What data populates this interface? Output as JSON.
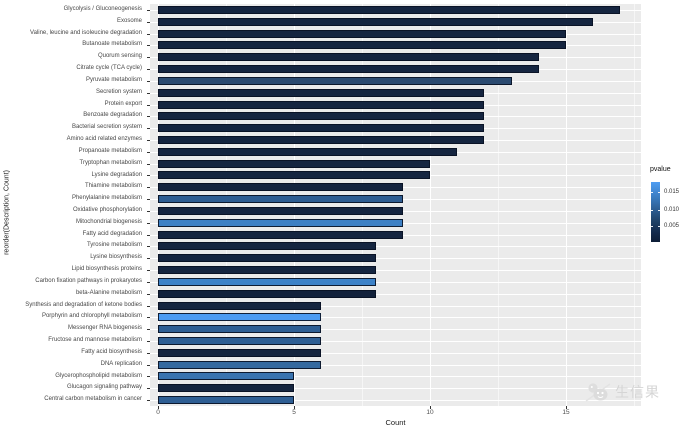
{
  "figure": {
    "x_axis_title": "Count",
    "y_axis_title": "reorder(Description, Count)"
  },
  "legend": {
    "title": "pvalue",
    "tick_labels": [
      "0.015",
      "0.010",
      "0.005"
    ],
    "gradient_top_color": "#4f9df2",
    "gradient_bottom_color": "#0d1d36"
  },
  "watermark": {
    "text": "生信果"
  },
  "chart_data": {
    "type": "bar",
    "orientation": "horizontal",
    "title": "",
    "xlabel": "Count",
    "ylabel": "reorder(Description, Count)",
    "xlim": [
      0,
      17.5
    ],
    "x_major_ticks": [
      0,
      5,
      10,
      15
    ],
    "x_minor_ticks": [
      2.5,
      7.5,
      12.5,
      17.5
    ],
    "grid": true,
    "panel_bg": "#ebebeb",
    "legend": {
      "title": "pvalue",
      "position": "right",
      "ticks": [
        0.015,
        0.01,
        0.005
      ],
      "range": [
        0,
        0.018
      ]
    },
    "categories": [
      "Glycolysis / Gluconeogenesis",
      "Exosome",
      "Valine, leucine and isoleucine degradation",
      "Butanoate metabolism",
      "Quorum sensing",
      "Citrate cycle (TCA cycle)",
      "Pyruvate metabolism",
      "Secretion system",
      "Protein export",
      "Benzoate degradation",
      "Bacterial secretion system",
      "Amino acid related enzymes",
      "Propanoate metabolism",
      "Tryptophan metabolism",
      "Lysine degradation",
      "Thiamine metabolism",
      "Phenylalanine metabolism",
      "Oxidative phosphorylation",
      "Mitochondrial biogenesis",
      "Fatty acid degradation",
      "Tyrosine metabolism",
      "Lysine biosynthesis",
      "Lipid biosynthesis proteins",
      "Carbon fixation pathways in prokaryotes",
      "beta-Alanine metabolism",
      "Synthesis and degradation of ketone bodies",
      "Porphyrin and chlorophyll metabolism",
      "Messenger RNA biogenesis",
      "Fructose and mannose metabolism",
      "Fatty acid biosynthesis",
      "DNA replication",
      "Glycerophospholipid metabolism",
      "Glucagon signaling pathway",
      "Central carbon metabolism in cancer"
    ],
    "values": [
      17,
      16,
      15,
      15,
      14,
      14,
      13,
      12,
      12,
      12,
      12,
      12,
      11,
      10,
      10,
      9,
      9,
      9,
      9,
      9,
      8,
      8,
      8,
      8,
      8,
      6,
      6,
      6,
      6,
      6,
      6,
      5,
      5,
      5
    ],
    "pvalues_approx": [
      0.001,
      0.001,
      0.001,
      0.001,
      0.001,
      0.001,
      0.005,
      0.001,
      0.001,
      0.001,
      0.001,
      0.001,
      0.001,
      0.001,
      0.001,
      0.001,
      0.009,
      0.001,
      0.014,
      0.001,
      0.001,
      0.001,
      0.001,
      0.014,
      0.001,
      0.001,
      0.017,
      0.009,
      0.009,
      0.001,
      0.01,
      0.011,
      0.001,
      0.009
    ],
    "bar_colors": [
      "#152540",
      "#152540",
      "#152540",
      "#152540",
      "#152540",
      "#152540",
      "#2b4a70",
      "#152540",
      "#152540",
      "#152540",
      "#152540",
      "#152540",
      "#152540",
      "#152540",
      "#152540",
      "#152540",
      "#2e5d92",
      "#152540",
      "#3d80c4",
      "#152540",
      "#152540",
      "#152540",
      "#152540",
      "#3d82c8",
      "#12213b",
      "#15253f",
      "#4c9bf2",
      "#2e5e93",
      "#2e5e93",
      "#15253f",
      "#35699f",
      "#3a74b0",
      "#15253f",
      "#2e5e93"
    ]
  }
}
